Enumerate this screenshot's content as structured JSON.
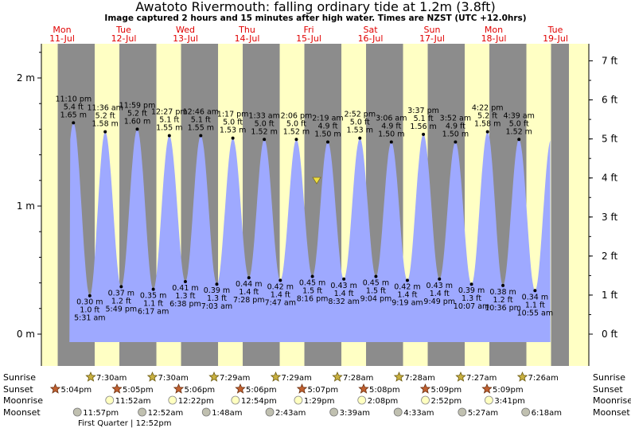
{
  "header": {
    "title": "Awatoto Rivermouth: falling  ordinary tide at 1.2m (3.8ft)",
    "subtitle": "Image captured 2 hours and 15 minutes after high water. Times are NZST (UTC +12.0hrs)"
  },
  "chart_data": {
    "type": "area",
    "title": "Awatoto Rivermouth: falling  ordinary tide at 1.2m (3.8ft)",
    "days": [
      {
        "name": "Mon",
        "date": "11-Jul"
      },
      {
        "name": "Tue",
        "date": "12-Jul"
      },
      {
        "name": "Wed",
        "date": "13-Jul"
      },
      {
        "name": "Thu",
        "date": "14-Jul"
      },
      {
        "name": "Fri",
        "date": "15-Jul"
      },
      {
        "name": "Sat",
        "date": "16-Jul"
      },
      {
        "name": "Sun",
        "date": "17-Jul"
      },
      {
        "name": "Mon",
        "date": "18-Jul"
      },
      {
        "name": "Tue",
        "date": "19-Jul"
      }
    ],
    "left_axis": {
      "unit": "m",
      "ticks": [
        {
          "v": 0,
          "label": "0 m"
        },
        {
          "v": 1,
          "label": "1 m"
        },
        {
          "v": 2,
          "label": "2 m"
        }
      ],
      "ylim": [
        -0.1,
        2.25
      ]
    },
    "right_axis": {
      "unit": "ft",
      "ticks": [
        "0 ft",
        "1 ft",
        "2 ft",
        "3 ft",
        "4 ft",
        "5 ft",
        "6 ft",
        "7 ft"
      ]
    },
    "colors": {
      "tide": "#9ea9ff",
      "night": "#8c8c8c",
      "day": "#ffffc4",
      "day_label": "#e00000",
      "marker": "#f0e040"
    },
    "current": {
      "x_days": 4.32,
      "height_m": 1.2
    },
    "tides": [
      {
        "type": "high",
        "x_days": 0.965,
        "h": 1.65,
        "lines": [
          "11:10 pm",
          "5.4 ft",
          "1.65 m"
        ]
      },
      {
        "type": "low",
        "x_days": 1.23,
        "h": 0.3,
        "lines": [
          "0.30 m",
          "1.0 ft",
          "5:31 am"
        ]
      },
      {
        "type": "high",
        "x_days": 1.48,
        "h": 1.58,
        "lines": [
          "11:36 am",
          "5.2 ft",
          "1.58 m"
        ]
      },
      {
        "type": "low",
        "x_days": 1.74,
        "h": 0.37,
        "lines": [
          "0.37 m",
          "1.2 ft",
          "5:49 pm"
        ]
      },
      {
        "type": "high",
        "x_days": 2.0,
        "h": 1.6,
        "lines": [
          "11:59 pm",
          "5.2 ft",
          "1.60 m"
        ]
      },
      {
        "type": "low",
        "x_days": 2.26,
        "h": 0.35,
        "lines": [
          "0.35 m",
          "1.1 ft",
          "6:17 am"
        ]
      },
      {
        "type": "high",
        "x_days": 2.52,
        "h": 1.55,
        "lines": [
          "12:27 pm",
          "5.1 ft",
          "1.55 m"
        ]
      },
      {
        "type": "low",
        "x_days": 2.78,
        "h": 0.41,
        "lines": [
          "0.41 m",
          "1.3 ft",
          "6:38 pm"
        ]
      },
      {
        "type": "high",
        "x_days": 3.03,
        "h": 1.55,
        "lines": [
          "12:46 am",
          "5.1 ft",
          "1.55 m"
        ]
      },
      {
        "type": "low",
        "x_days": 3.29,
        "h": 0.39,
        "lines": [
          "0.39 m",
          "1.3 ft",
          "7:03 am"
        ]
      },
      {
        "type": "high",
        "x_days": 3.55,
        "h": 1.53,
        "lines": [
          "1:17 pm",
          "5.0 ft",
          "1.53 m"
        ]
      },
      {
        "type": "low",
        "x_days": 3.81,
        "h": 0.44,
        "lines": [
          "0.44 m",
          "1.4 ft",
          "7:28 pm"
        ]
      },
      {
        "type": "high",
        "x_days": 4.06,
        "h": 1.52,
        "lines": [
          "1:33 am",
          "5.0 ft",
          "1.52 m"
        ]
      },
      {
        "type": "low",
        "x_days": 4.32,
        "h": 0.42,
        "lines": [
          "0.42 m",
          "1.4 ft",
          "7:47 am"
        ]
      },
      {
        "type": "high",
        "x_days": 4.58,
        "h": 1.52,
        "lines": [
          "2:06 pm",
          "5.0 ft",
          "1.52 m"
        ]
      },
      {
        "type": "low",
        "x_days": 4.84,
        "h": 0.45,
        "lines": [
          "0.45 m",
          "1.5 ft",
          "8:16 pm"
        ]
      },
      {
        "type": "high",
        "x_days": 5.09,
        "h": 1.5,
        "lines": [
          "2:19 am",
          "4.9 ft",
          "1.50 m"
        ]
      },
      {
        "type": "low",
        "x_days": 5.35,
        "h": 0.43,
        "lines": [
          "0.43 m",
          "1.4 ft",
          "8:32 am"
        ]
      },
      {
        "type": "high",
        "x_days": 5.61,
        "h": 1.53,
        "lines": [
          "2:52 pm",
          "5.0 ft",
          "1.53 m"
        ]
      },
      {
        "type": "low",
        "x_days": 5.87,
        "h": 0.45,
        "lines": [
          "0.45 m",
          "1.5 ft",
          "9:04 pm"
        ]
      },
      {
        "type": "high",
        "x_days": 6.12,
        "h": 1.5,
        "lines": [
          "3:06 am",
          "4.9 ft",
          "1.50 m"
        ]
      },
      {
        "type": "low",
        "x_days": 6.38,
        "h": 0.42,
        "lines": [
          "0.42 m",
          "1.4 ft",
          "9:19 am"
        ]
      },
      {
        "type": "high",
        "x_days": 6.64,
        "h": 1.56,
        "lines": [
          "3:37 pm",
          "5.1 ft",
          "1.56 m"
        ]
      },
      {
        "type": "low",
        "x_days": 6.9,
        "h": 0.43,
        "lines": [
          "0.43 m",
          "1.4 ft",
          "9:49 pm"
        ]
      },
      {
        "type": "high",
        "x_days": 7.16,
        "h": 1.5,
        "lines": [
          "3:52 am",
          "4.9 ft",
          "1.50 m"
        ]
      },
      {
        "type": "low",
        "x_days": 7.42,
        "h": 0.39,
        "lines": [
          "0.39 m",
          "1.3 ft",
          "10:07 am"
        ]
      },
      {
        "type": "high",
        "x_days": 7.68,
        "h": 1.58,
        "lines": [
          "4:22 pm",
          "5.2 ft",
          "1.58 m"
        ]
      },
      {
        "type": "low",
        "x_days": 7.93,
        "h": 0.38,
        "lines": [
          "0.38 m",
          "1.2 ft",
          "10:36 pm"
        ]
      },
      {
        "type": "high",
        "x_days": 8.19,
        "h": 1.52,
        "lines": [
          "4:39 am",
          "5.0 ft",
          "1.52 m"
        ]
      },
      {
        "type": "low",
        "x_days": 8.45,
        "h": 0.34,
        "lines": [
          "0.34 m",
          "1.1 ft",
          "10:55 am"
        ]
      }
    ],
    "sun_nights": [
      [
        0.0,
        0.21
      ],
      [
        0.71,
        1.31
      ],
      [
        1.71,
        2.31
      ],
      [
        2.71,
        3.31
      ],
      [
        3.71,
        4.31
      ],
      [
        4.71,
        5.31
      ],
      [
        5.71,
        6.31
      ],
      [
        6.71,
        7.31
      ],
      [
        7.71,
        8.31
      ],
      [
        8.71,
        9.0
      ]
    ],
    "astro": {
      "row_labels": {
        "sunrise": "Sunrise",
        "sunset": "Sunset",
        "moonrise": "Moonrise",
        "moonset": "Moonset"
      },
      "sunrise": [
        {
          "x_days": 1.31,
          "t": "7:30am"
        },
        {
          "x_days": 2.31,
          "t": "7:30am"
        },
        {
          "x_days": 3.31,
          "t": "7:29am"
        },
        {
          "x_days": 4.31,
          "t": "7:29am"
        },
        {
          "x_days": 5.31,
          "t": "7:28am"
        },
        {
          "x_days": 6.31,
          "t": "7:28am"
        },
        {
          "x_days": 7.31,
          "t": "7:27am"
        },
        {
          "x_days": 8.31,
          "t": "7:26am"
        }
      ],
      "sunset": [
        {
          "x_days": 0.71,
          "t": "5:04pm"
        },
        {
          "x_days": 1.71,
          "t": "5:05pm"
        },
        {
          "x_days": 2.71,
          "t": "5:06pm"
        },
        {
          "x_days": 3.71,
          "t": "5:06pm"
        },
        {
          "x_days": 4.71,
          "t": "5:07pm"
        },
        {
          "x_days": 5.71,
          "t": "5:08pm"
        },
        {
          "x_days": 6.71,
          "t": "5:09pm"
        },
        {
          "x_days": 7.71,
          "t": "5:09pm"
        }
      ],
      "moonrise": [
        {
          "x_days": 1.5,
          "t": "11:52am"
        },
        {
          "x_days": 2.52,
          "t": "12:22pm"
        },
        {
          "x_days": 3.54,
          "t": "12:54pm"
        },
        {
          "x_days": 4.56,
          "t": "1:29pm"
        },
        {
          "x_days": 5.59,
          "t": "2:08pm"
        },
        {
          "x_days": 6.62,
          "t": "2:52pm"
        },
        {
          "x_days": 7.65,
          "t": "3:41pm"
        }
      ],
      "moonset": [
        {
          "x_days": 0.99,
          "t": "11:57pm"
        },
        {
          "x_days": 2.04,
          "t": "12:52am"
        },
        {
          "x_days": 3.08,
          "t": "1:48am"
        },
        {
          "x_days": 4.11,
          "t": "2:43am"
        },
        {
          "x_days": 5.15,
          "t": "3:39am"
        },
        {
          "x_days": 6.19,
          "t": "4:33am"
        },
        {
          "x_days": 7.23,
          "t": "5:27am"
        },
        {
          "x_days": 8.26,
          "t": "6:18am"
        }
      ],
      "phase": "First Quarter | 12:52pm"
    }
  }
}
